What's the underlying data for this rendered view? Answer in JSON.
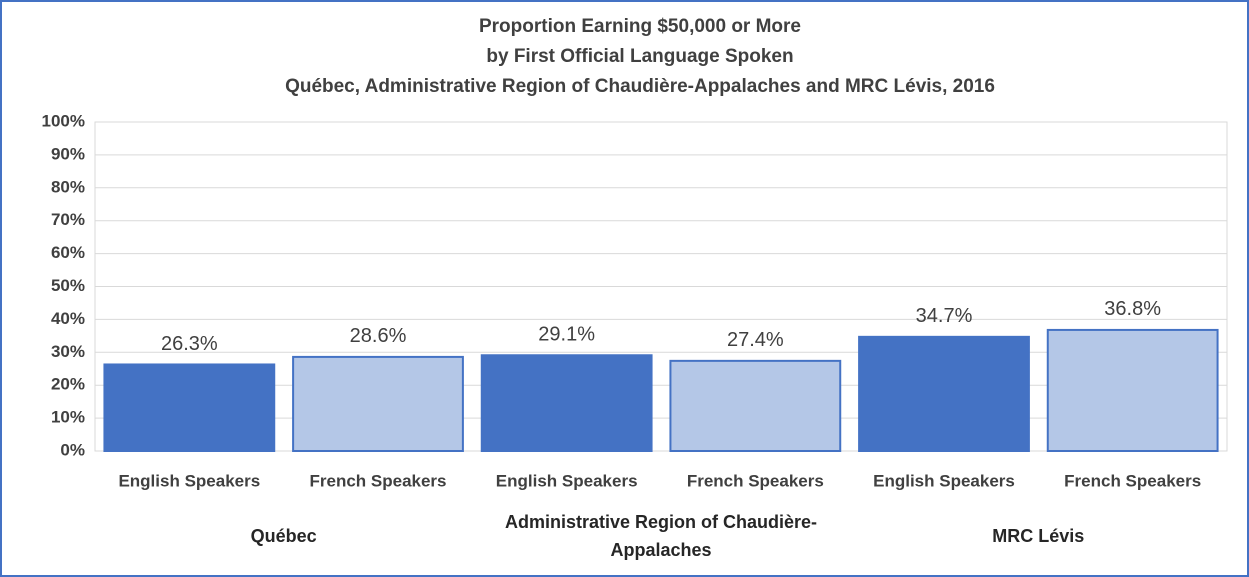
{
  "chart_data": {
    "type": "bar",
    "title": [
      "Proportion Earning $50,000 or More",
      "by First Official Language Spoken",
      "Québec, Administrative Region of Chaudière-Appalaches and MRC Lévis, 2016"
    ],
    "categories": [
      "English Speakers",
      "French Speakers",
      "English Speakers",
      "French Speakers",
      "English Speakers",
      "French Speakers"
    ],
    "groups": [
      "Québec",
      "Administrative Region of Chaudière-Appalaches",
      "MRC Lévis"
    ],
    "values": [
      26.3,
      28.6,
      29.1,
      27.4,
      34.7,
      36.8
    ],
    "value_labels": [
      "26.3%",
      "28.6%",
      "29.1%",
      "27.4%",
      "34.7%",
      "36.8%"
    ],
    "colors": [
      "#4472c4",
      "#b4c7e7",
      "#4472c4",
      "#b4c7e7",
      "#4472c4",
      "#b4c7e7"
    ],
    "ylim": [
      0,
      100
    ],
    "yticks": [
      {
        "value": 0,
        "label": "0%"
      },
      {
        "value": 10,
        "label": "10%"
      },
      {
        "value": 20,
        "label": "20%"
      },
      {
        "value": 30,
        "label": "30%"
      },
      {
        "value": 40,
        "label": "40%"
      },
      {
        "value": 50,
        "label": "50%"
      },
      {
        "value": 60,
        "label": "60%"
      },
      {
        "value": 70,
        "label": "70%"
      },
      {
        "value": 80,
        "label": "80%"
      },
      {
        "value": 90,
        "label": "90%"
      },
      {
        "value": 100,
        "label": "100%"
      }
    ],
    "grid": true
  }
}
